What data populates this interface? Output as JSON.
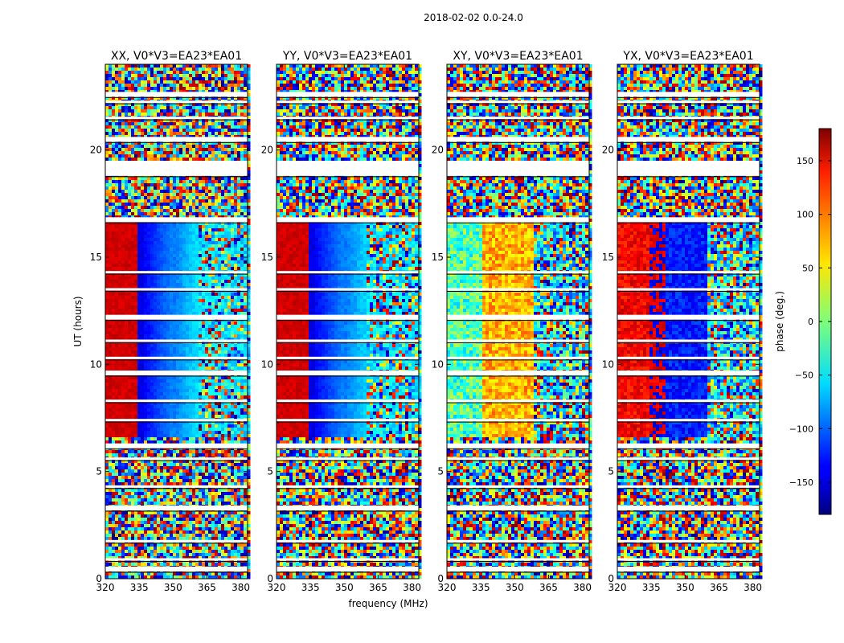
{
  "chart_data": {
    "type": "heatmap",
    "suptitle": "2018-02-02 0.0-24.0",
    "xlabel": "frequency (MHz)",
    "ylabel": "UT (hours)",
    "x_range": [
      320,
      383
    ],
    "y_range": [
      0,
      24
    ],
    "x_ticks": [
      320,
      335,
      350,
      365,
      380
    ],
    "y_ticks": [
      0,
      5,
      10,
      15,
      20
    ],
    "panels": [
      {
        "title": "XX, V0*V3=EA23*EA01",
        "product": "XX"
      },
      {
        "title": "YY, V0*V3=EA23*EA01",
        "product": "YY"
      },
      {
        "title": "XY, V0*V3=EA23*EA01",
        "product": "XY"
      },
      {
        "title": "YX, V0*V3=EA23*EA01",
        "product": "YX"
      }
    ],
    "colorbar": {
      "label": "phase (deg.)",
      "range": [
        -180,
        180
      ],
      "ticks": [
        -150,
        -100,
        -50,
        0,
        50,
        100,
        150
      ],
      "colormap": "jet"
    },
    "flagged_hours": [
      0.45,
      0.9,
      1.75,
      3.3,
      4.3,
      5.6,
      6.2,
      7.4,
      8.3,
      9.6,
      10.3,
      11.1,
      12.2,
      13.5,
      14.3,
      16.75,
      18.85,
      19.1,
      20.5,
      21.5,
      22.25,
      22.6
    ]
  }
}
